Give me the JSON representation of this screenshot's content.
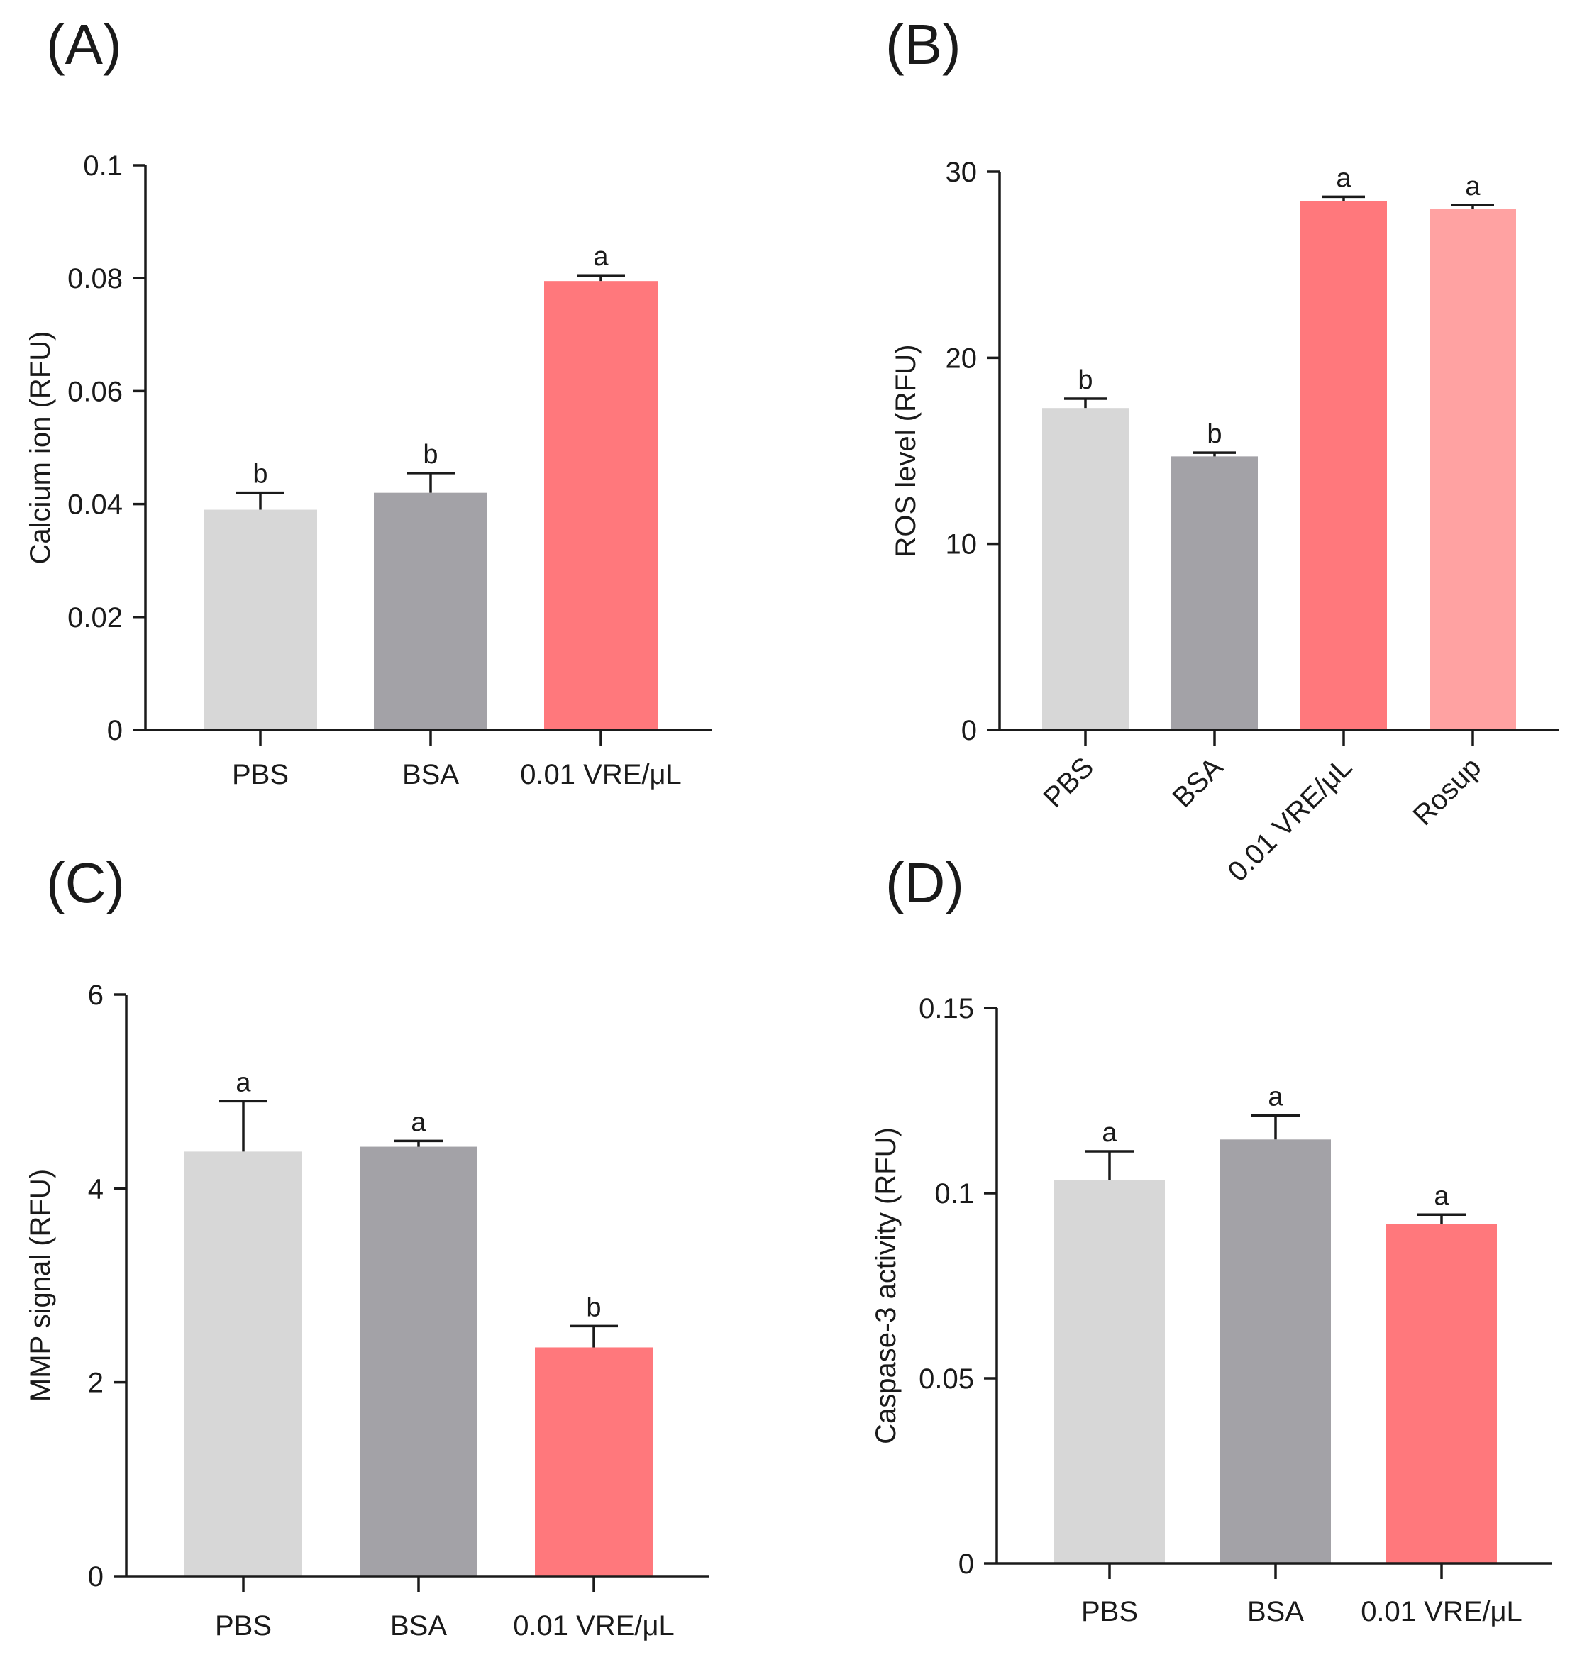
{
  "chart_data": [
    {
      "panel": "(A)",
      "type": "bar",
      "categories": [
        "PBS",
        "BSA",
        "0.01 VRE/μL"
      ],
      "values": [
        0.039,
        0.042,
        0.0795
      ],
      "errors": [
        0.003,
        0.0035,
        0.001
      ],
      "significance": [
        "b",
        "b",
        "a"
      ],
      "colors": [
        "#d7d7d7",
        "#a3a2a7",
        "#ff787c"
      ],
      "ylabel": "Calcium ion (RFU)",
      "ylim": [
        0,
        0.1
      ],
      "yticks": [
        0,
        0.02,
        0.04,
        0.06,
        0.08,
        0.1
      ],
      "ytick_labels": [
        "0",
        "0.02",
        "0.04",
        "0.06",
        "0.08",
        "0.1"
      ],
      "rotate_xlabels": false
    },
    {
      "panel": "(B)",
      "type": "bar",
      "categories": [
        "PBS",
        "BSA",
        "0.01 VRE/μL",
        "Rosup"
      ],
      "values": [
        17.3,
        14.7,
        28.4,
        28.0
      ],
      "errors": [
        0.5,
        0.2,
        0.25,
        0.2
      ],
      "significance": [
        "b",
        "b",
        "a",
        "a"
      ],
      "colors": [
        "#d7d7d7",
        "#a3a2a7",
        "#ff787c",
        "#ffa2a2"
      ],
      "ylabel": "ROS level (RFU)",
      "ylim": [
        0,
        30
      ],
      "yticks": [
        0,
        10,
        20,
        30
      ],
      "ytick_labels": [
        "0",
        "10",
        "20",
        "30"
      ],
      "rotate_xlabels": true
    },
    {
      "panel": "(C)",
      "type": "bar",
      "categories": [
        "PBS",
        "BSA",
        "0.01 VRE/μL"
      ],
      "values": [
        4.38,
        4.43,
        2.36
      ],
      "errors": [
        0.52,
        0.06,
        0.22
      ],
      "significance": [
        "a",
        "a",
        "b"
      ],
      "colors": [
        "#d7d7d7",
        "#a3a2a7",
        "#ff787c"
      ],
      "ylabel": "MMP signal (RFU)",
      "ylim": [
        0,
        6
      ],
      "yticks": [
        0,
        2,
        4,
        6
      ],
      "ytick_labels": [
        "0",
        "2",
        "4",
        "6"
      ],
      "rotate_xlabels": false
    },
    {
      "panel": "(D)",
      "type": "bar",
      "categories": [
        "PBS",
        "BSA",
        "0.01 VRE/μL"
      ],
      "values": [
        0.1035,
        0.1145,
        0.0917
      ],
      "errors": [
        0.0078,
        0.0065,
        0.0025
      ],
      "significance": [
        "a",
        "a",
        "a"
      ],
      "colors": [
        "#d7d7d7",
        "#a3a2a7",
        "#ff787c"
      ],
      "ylabel": "Caspase-3 activity  (RFU)",
      "ylim": [
        0,
        0.15
      ],
      "yticks": [
        0,
        0.05,
        0.1,
        0.15
      ],
      "ytick_labels": [
        "0",
        "0.05",
        "0.1",
        "0.15"
      ],
      "rotate_xlabels": false
    }
  ]
}
